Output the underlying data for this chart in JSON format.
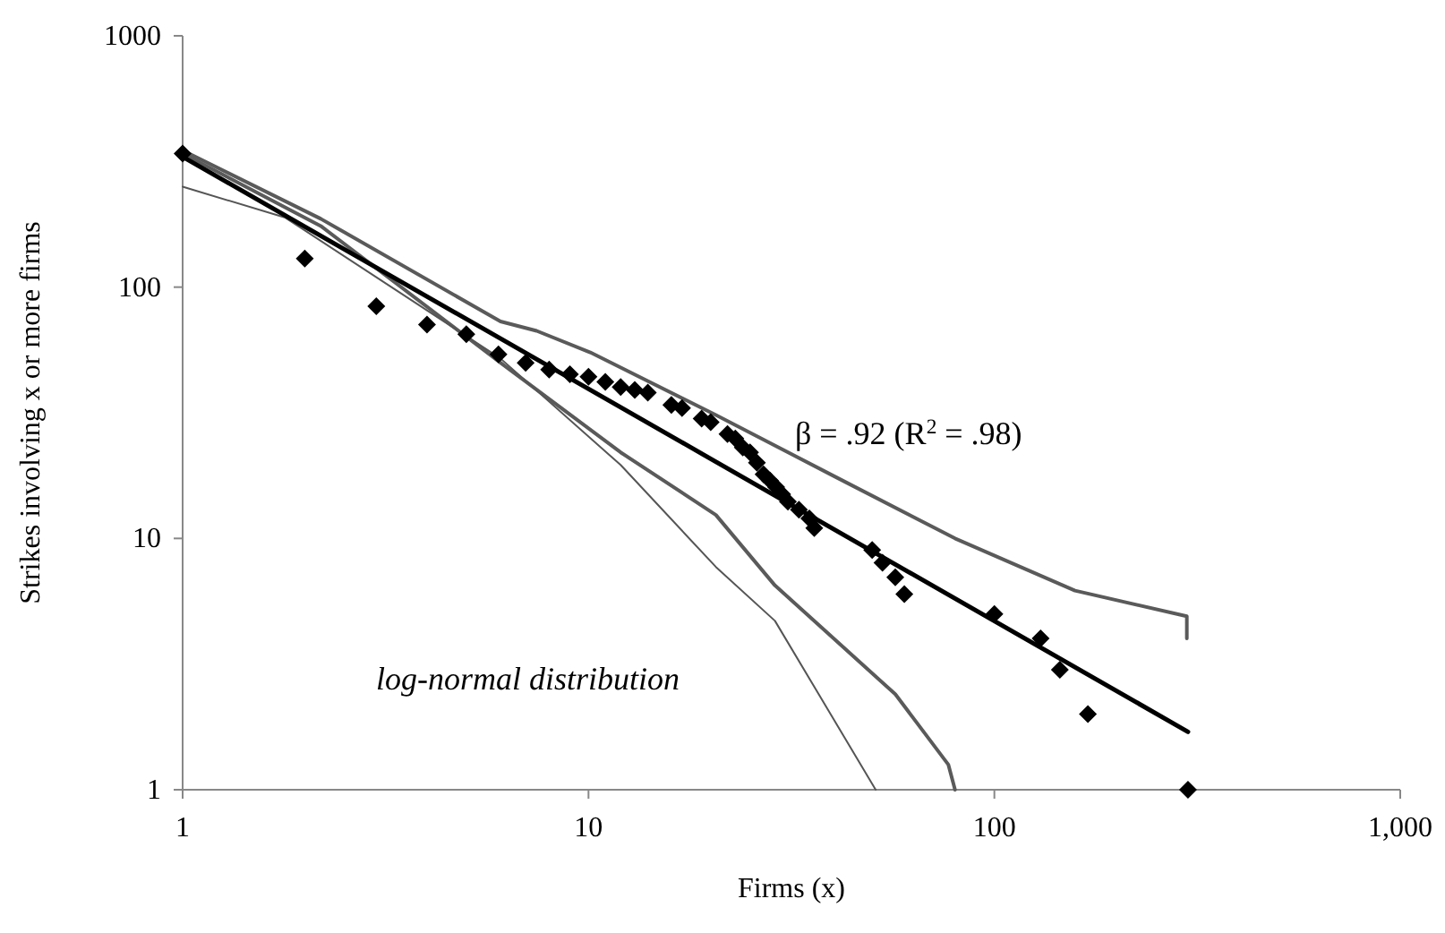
{
  "chart_data": {
    "type": "scatter",
    "xlabel": "Firms (x)",
    "ylabel": "Strikes involving x or more firms",
    "log": "xy",
    "xlim": [
      1,
      1000
    ],
    "ylim": [
      1,
      1000
    ],
    "xticks": [
      1,
      10,
      100,
      {
        "value": 1000,
        "label": "1,000"
      }
    ],
    "yticks": [
      1,
      10,
      100,
      1000
    ],
    "grid": false,
    "annotations": [
      "β = .92 (R$^{2}$ = .98)",
      "log-normal distribution"
    ],
    "series": [
      {
        "type": "line",
        "color": "#5a5a5a",
        "x": [
          1,
          2.19,
          6.07,
          7.45,
          10.1,
          20.6,
          40.8,
          80,
          158,
          298,
          298
        ],
        "values": [
          350,
          187,
          73,
          67,
          55,
          31,
          17.5,
          10,
          6.2,
          4.9,
          4.0
        ]
      },
      {
        "type": "line",
        "color": "#5a5a5a",
        "x": [
          1,
          2.19,
          6.07,
          12,
          20.6,
          28.8,
          57,
          77,
          80
        ],
        "values": [
          340,
          175,
          50,
          22,
          12.4,
          6.5,
          2.4,
          1.26,
          1
        ]
      },
      {
        "type": "line",
        "color": "#555555",
        "x": [
          1,
          1.79,
          6.07,
          12,
          20.6,
          28.8,
          51
        ],
        "values": [
          251,
          189,
          52,
          19.6,
          7.7,
          4.7,
          1
        ]
      },
      {
        "type": "line",
        "color": "#000000",
        "x": [
          1,
          300
        ],
        "values": [
          330,
          1.7
        ]
      },
      {
        "color": "#000000",
        "marker": "diamond",
        "x": [
          1,
          2,
          3,
          4,
          5,
          6,
          7,
          8,
          9,
          10,
          11,
          12,
          13,
          14,
          16,
          17,
          19,
          20,
          22,
          23,
          24,
          25,
          26,
          27,
          28,
          29,
          30,
          31,
          33,
          35,
          36,
          50,
          53,
          57,
          60,
          100,
          130,
          145,
          170,
          300
        ],
        "values": [
          340,
          130,
          84,
          71,
          65,
          54,
          50,
          47,
          45,
          44,
          42,
          40,
          39,
          38,
          34,
          33,
          30,
          29,
          26,
          25,
          23,
          22,
          20,
          18,
          17,
          16,
          15,
          14,
          13,
          12,
          11,
          9,
          8,
          7,
          6,
          5,
          4,
          3,
          2,
          1
        ]
      }
    ]
  }
}
